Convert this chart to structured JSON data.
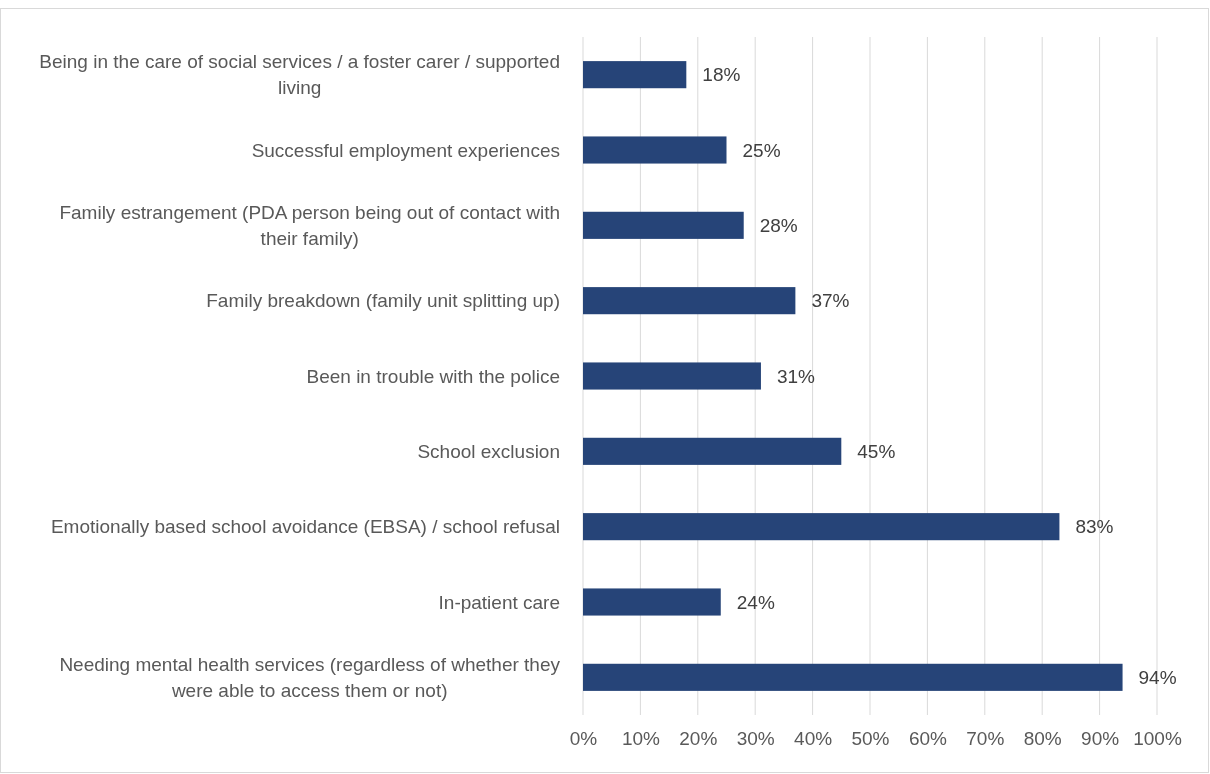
{
  "chart_data": {
    "type": "bar",
    "orientation": "horizontal",
    "categories": [
      "Being in the care of social services / a foster carer / supported living",
      "Successful employment experiences",
      "Family estrangement (PDA person being out of contact with their family)",
      "Family breakdown (family unit splitting up)",
      "Been in trouble with the police",
      "School exclusion",
      "Emotionally based school avoidance (EBSA) / school refusal",
      "In-patient care",
      "Needing mental health services (regardless of whether they were able to access them or not)"
    ],
    "values": [
      18,
      25,
      28,
      37,
      31,
      45,
      83,
      24,
      94
    ],
    "value_labels": [
      "18%",
      "25%",
      "28%",
      "37%",
      "31%",
      "45%",
      "83%",
      "24%",
      "94%"
    ],
    "color": "#264478",
    "xlim": [
      0,
      100
    ],
    "xticks": [
      {
        "value": 0,
        "label": "0%"
      },
      {
        "value": 10,
        "label": "10%"
      },
      {
        "value": 20,
        "label": "20%"
      },
      {
        "value": 30,
        "label": "30%"
      },
      {
        "value": 40,
        "label": "40%"
      },
      {
        "value": 50,
        "label": "50%"
      },
      {
        "value": 60,
        "label": "60%"
      },
      {
        "value": 70,
        "label": "70%"
      },
      {
        "value": 80,
        "label": "80%"
      },
      {
        "value": 90,
        "label": "90%"
      },
      {
        "value": 100,
        "label": "100%"
      }
    ],
    "grid": "x"
  }
}
